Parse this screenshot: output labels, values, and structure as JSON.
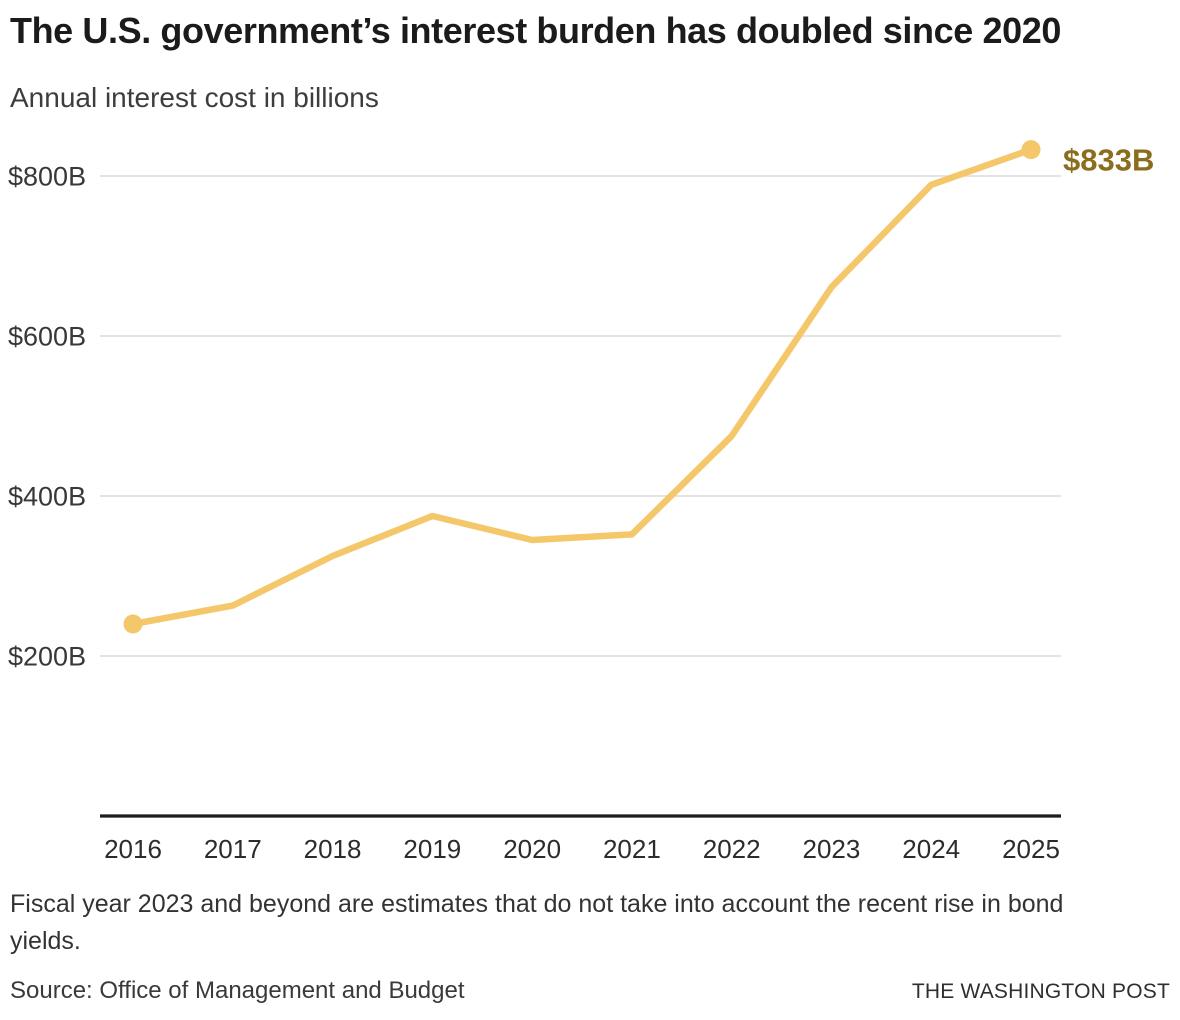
{
  "header": {
    "title": "The U.S. government’s interest burden has doubled since 2020",
    "subtitle": "Annual interest cost in billions"
  },
  "chart_data": {
    "type": "line",
    "title": "The U.S. government’s interest burden has doubled since 2020",
    "subtitle": "Annual interest cost in billions",
    "x": [
      2016,
      2017,
      2018,
      2019,
      2020,
      2021,
      2022,
      2023,
      2024,
      2025
    ],
    "categories": [
      "2016",
      "2017",
      "2018",
      "2019",
      "2020",
      "2021",
      "2022",
      "2023",
      "2024",
      "2025"
    ],
    "series": [
      {
        "name": "Annual interest cost (billions of dollars)",
        "values": [
          240,
          263,
          325,
          375,
          345,
          352,
          475,
          661,
          789,
          833
        ]
      }
    ],
    "unit": "billions of U.S. dollars",
    "xlabel": "",
    "ylabel": "",
    "ylim": [
      0,
      870
    ],
    "y_ticks": [
      200,
      400,
      600,
      800
    ],
    "y_tick_labels": [
      "$200B",
      "$400B",
      "$600B",
      "$800B"
    ],
    "grid": true,
    "legend_position": "none",
    "end_label": "$833B",
    "marker_points": [
      "first",
      "last"
    ],
    "colors": {
      "line": "#F5C76B",
      "marker": "#F5C76B",
      "end_label": "#8A6D1D",
      "grid": "#DCDCDC",
      "axis": "#1C1C1C",
      "y_tick_text": "#383838",
      "x_tick_text": "#2C2C2C"
    }
  },
  "footer": {
    "note": "Fiscal year 2023 and beyond are estimates that do not take into account the recent rise in bond yields.",
    "source": "Source: Office of Management and Budget",
    "publisher": "THE WASHINGTON POST"
  }
}
